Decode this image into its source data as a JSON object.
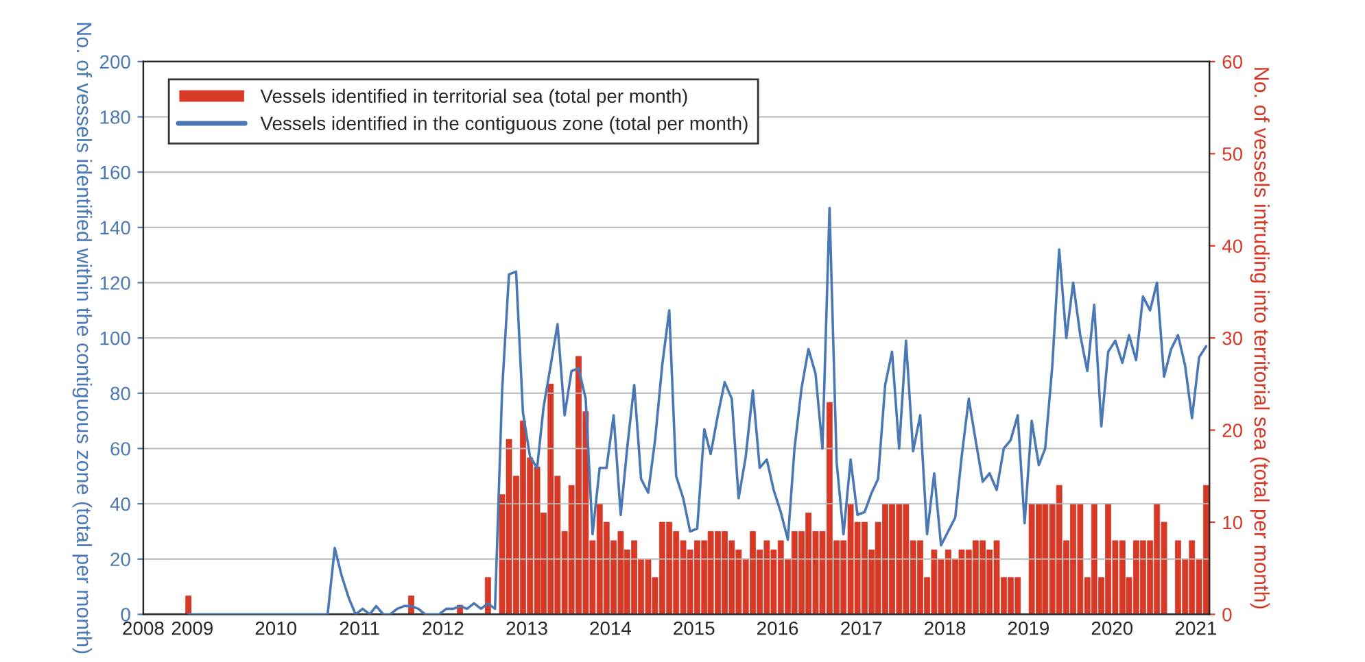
{
  "chart_data": {
    "type": "bar",
    "x": [
      "2008-12",
      "2009-01",
      "2009-02",
      "2009-03",
      "2009-04",
      "2009-05",
      "2009-06",
      "2009-07",
      "2009-08",
      "2009-09",
      "2009-10",
      "2009-11",
      "2009-12",
      "2010-01",
      "2010-02",
      "2010-03",
      "2010-04",
      "2010-05",
      "2010-06",
      "2010-07",
      "2010-08",
      "2010-09",
      "2010-10",
      "2010-11",
      "2010-12",
      "2011-01",
      "2011-02",
      "2011-03",
      "2011-04",
      "2011-05",
      "2011-06",
      "2011-07",
      "2011-08",
      "2011-09",
      "2011-10",
      "2011-11",
      "2011-12",
      "2012-01",
      "2012-02",
      "2012-03",
      "2012-04",
      "2012-05",
      "2012-06",
      "2012-07",
      "2012-08",
      "2012-09",
      "2012-10",
      "2012-11",
      "2012-12",
      "2013-01",
      "2013-02",
      "2013-03",
      "2013-04",
      "2013-05",
      "2013-06",
      "2013-07",
      "2013-08",
      "2013-09",
      "2013-10",
      "2013-11",
      "2013-12",
      "2014-01",
      "2014-02",
      "2014-03",
      "2014-04",
      "2014-05",
      "2014-06",
      "2014-07",
      "2014-08",
      "2014-09",
      "2014-10",
      "2014-11",
      "2014-12",
      "2015-01",
      "2015-02",
      "2015-03",
      "2015-04",
      "2015-05",
      "2015-06",
      "2015-07",
      "2015-08",
      "2015-09",
      "2015-10",
      "2015-11",
      "2015-12",
      "2016-01",
      "2016-02",
      "2016-03",
      "2016-04",
      "2016-05",
      "2016-06",
      "2016-07",
      "2016-08",
      "2016-09",
      "2016-10",
      "2016-11",
      "2016-12",
      "2017-01",
      "2017-02",
      "2017-03",
      "2017-04",
      "2017-05",
      "2017-06",
      "2017-07",
      "2017-08",
      "2017-09",
      "2017-10",
      "2017-11",
      "2017-12",
      "2018-01",
      "2018-02",
      "2018-03",
      "2018-04",
      "2018-05",
      "2018-06",
      "2018-07",
      "2018-08",
      "2018-09",
      "2018-10",
      "2018-11",
      "2018-12",
      "2019-01",
      "2019-02",
      "2019-03",
      "2019-04",
      "2019-05",
      "2019-06",
      "2019-07",
      "2019-08",
      "2019-09",
      "2019-10",
      "2019-11",
      "2019-12",
      "2020-01",
      "2020-02",
      "2020-03",
      "2020-04",
      "2020-05",
      "2020-06",
      "2020-07",
      "2020-08",
      "2020-09",
      "2020-10",
      "2020-11",
      "2020-12",
      "2021-01",
      "2021-02"
    ],
    "series": [
      {
        "name": "Vessels identified in territorial sea (total per month)",
        "axis": "y2",
        "color": "#d63a26",
        "values": [
          2,
          0,
          0,
          0,
          0,
          0,
          0,
          0,
          0,
          0,
          0,
          0,
          0,
          0,
          0,
          0,
          0,
          0,
          0,
          0,
          0,
          0,
          0,
          0,
          0,
          0,
          0,
          0,
          0,
          0,
          0,
          0,
          2,
          0,
          0,
          0,
          0,
          0,
          0,
          1,
          0,
          0,
          0,
          4,
          0,
          13,
          19,
          15,
          21,
          17,
          16,
          11,
          25,
          15,
          9,
          14,
          28,
          22,
          8,
          12,
          10,
          8,
          9,
          7,
          8,
          6,
          6,
          4,
          10,
          10,
          9,
          8,
          7,
          8,
          8,
          9,
          9,
          9,
          8,
          7,
          6,
          9,
          7,
          8,
          7,
          8,
          6,
          9,
          9,
          11,
          9,
          9,
          23,
          8,
          8,
          12,
          10,
          10,
          7,
          10,
          12,
          12,
          12,
          12,
          8,
          8,
          4,
          7,
          6,
          7,
          6,
          7,
          7,
          8,
          8,
          7,
          8,
          4,
          4,
          4,
          0,
          12,
          12,
          12,
          12,
          14,
          8,
          12,
          12,
          4,
          12,
          4,
          12,
          8,
          8,
          4,
          8,
          8,
          8,
          12,
          10,
          0,
          8,
          6,
          8,
          6,
          14
        ]
      },
      {
        "name": "Vessels identified in the contiguous zone (total per month)",
        "type": "line",
        "color": "#4a78b5",
        "values": [
          0,
          0,
          0,
          0,
          0,
          0,
          0,
          0,
          0,
          0,
          0,
          0,
          0,
          0,
          0,
          0,
          0,
          0,
          0,
          0,
          0,
          24,
          14,
          6,
          0,
          2,
          0,
          3,
          0,
          0,
          2,
          3,
          3,
          2,
          0,
          0,
          0,
          2,
          2,
          3,
          2,
          4,
          2,
          4,
          2,
          81,
          123,
          124,
          73,
          57,
          53,
          75,
          90,
          105,
          72,
          88,
          89,
          78,
          29,
          53,
          53,
          72,
          36,
          60,
          83,
          49,
          44,
          63,
          90,
          110,
          50,
          42,
          30,
          31,
          67,
          58,
          72,
          84,
          78,
          42,
          57,
          81,
          53,
          56,
          45,
          37,
          27,
          60,
          82,
          96,
          87,
          60,
          147,
          55,
          29,
          56,
          36,
          37,
          44,
          49,
          83,
          95,
          60,
          99,
          59,
          72,
          29,
          51,
          25,
          30,
          35,
          57,
          78,
          63,
          48,
          51,
          45,
          60,
          63,
          72,
          33,
          70,
          54,
          60,
          90,
          132,
          100,
          120,
          101,
          88,
          112,
          68,
          95,
          99,
          91,
          101,
          92,
          115,
          110,
          120,
          86,
          96,
          101,
          90,
          71,
          93,
          97
        ]
      }
    ],
    "ylabel": "No. of vessels identified within the contiguous zone (total per month)",
    "y2label": "No. of vessels intruding into territorial sea (total per month)",
    "xlim": [
      "2008-06-01",
      "2021-03-01"
    ],
    "xticks": [
      {
        "value": "2008-06-01",
        "label": "2008"
      },
      {
        "value": "2009-01-01",
        "label": "2009"
      },
      {
        "value": "2010-01-01",
        "label": "2010"
      },
      {
        "value": "2011-01-01",
        "label": "2011"
      },
      {
        "value": "2012-01-01",
        "label": "2012"
      },
      {
        "value": "2013-01-01",
        "label": "2013"
      },
      {
        "value": "2014-01-01",
        "label": "2014"
      },
      {
        "value": "2015-01-01",
        "label": "2015"
      },
      {
        "value": "2016-01-01",
        "label": "2016"
      },
      {
        "value": "2017-01-01",
        "label": "2017"
      },
      {
        "value": "2018-01-01",
        "label": "2018"
      },
      {
        "value": "2019-01-01",
        "label": "2019"
      },
      {
        "value": "2020-01-01",
        "label": "2020"
      },
      {
        "value": "2021-01-01",
        "label": "2021"
      }
    ],
    "ylim": [
      0,
      200
    ],
    "yticks": [
      0,
      20,
      40,
      60,
      80,
      100,
      120,
      140,
      160,
      180,
      200
    ],
    "y2lim": [
      0,
      60
    ],
    "y2ticks": [
      0,
      10,
      20,
      30,
      40,
      50,
      60
    ],
    "grid": "y",
    "legend": "top left",
    "marker": "none",
    "line_style": "solid"
  }
}
